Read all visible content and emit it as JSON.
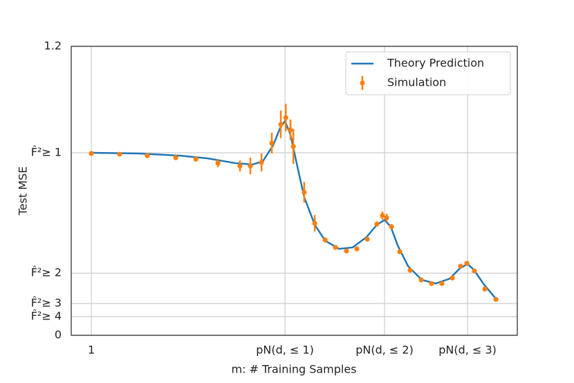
{
  "chart_data": {
    "type": "line",
    "xlabel": "m: # Training Samples",
    "ylabel": "Test MSE",
    "xscale": "log",
    "grid": true,
    "legend": "upper right",
    "xlim": [
      0.62,
      25100
    ],
    "xticks": [
      1,
      {
        "value": 100,
        "label": "pN(d, ≤ 1)"
      },
      {
        "value": 1068,
        "label": "pN(d, ≤ 2)"
      },
      {
        "value": 7690,
        "label": "pN(d, ≤ 3)"
      }
    ],
    "ylim": [
      0,
      1.2
    ],
    "yticks": [
      0,
      {
        "value": 0.0775,
        "label": "F̂²≥ 4"
      },
      {
        "value": 0.132,
        "label": "F̂²≥ 3"
      },
      {
        "value": 0.258,
        "label": "F̂²≥ 2"
      },
      {
        "value": 0.758,
        "label": "F̂²≥ 1"
      },
      1.2
    ],
    "series": [
      {
        "name": "Theory Prediction",
        "color": "#1f77b4",
        "kind": "line",
        "x": [
          1,
          3.06,
          8.2,
          15.8,
          30.6,
          46.1,
          59.1,
          75.6,
          89.1,
          100,
          114,
          134,
          158,
          203,
          260,
          361,
          501,
          696,
          891,
          1068,
          1238,
          1460,
          1868,
          2597,
          3606,
          5012,
          6415,
          7690,
          8913,
          11400,
          15100
        ],
        "values": [
          0.758,
          0.755,
          0.746,
          0.735,
          0.715,
          0.709,
          0.723,
          0.789,
          0.861,
          0.89,
          0.833,
          0.703,
          0.574,
          0.459,
          0.393,
          0.359,
          0.365,
          0.408,
          0.459,
          0.479,
          0.451,
          0.373,
          0.287,
          0.23,
          0.215,
          0.235,
          0.278,
          0.296,
          0.273,
          0.21,
          0.152
        ]
      },
      {
        "name": "Simulation",
        "color": "#ff7f0e",
        "kind": "errorbar",
        "x": [
          1,
          1.96,
          3.79,
          7.44,
          12.0,
          20.3,
          34.3,
          43.9,
          57.2,
          73.1,
          90.6,
          102,
          114,
          122,
          158,
          203,
          260,
          332,
          432,
          553,
          708,
          891,
          1016,
          1122,
          1259,
          1534,
          1963,
          2553,
          3266,
          4178,
          5354,
          6513,
          7568,
          9057,
          11600,
          15100
        ],
        "values": [
          0.755,
          0.752,
          0.746,
          0.738,
          0.732,
          0.715,
          0.703,
          0.703,
          0.718,
          0.798,
          0.876,
          0.904,
          0.853,
          0.784,
          0.594,
          0.465,
          0.396,
          0.365,
          0.35,
          0.359,
          0.399,
          0.462,
          0.497,
          0.488,
          0.451,
          0.347,
          0.27,
          0.23,
          0.215,
          0.215,
          0.238,
          0.287,
          0.299,
          0.267,
          0.192,
          0.149
        ],
        "errors": [
          0,
          0,
          0,
          0.011,
          0.011,
          0.017,
          0.023,
          0.034,
          0.037,
          0.043,
          0.057,
          0.057,
          0.043,
          0.072,
          0.043,
          0.034,
          0.011,
          0.009,
          0.009,
          0.009,
          0.009,
          0.011,
          0.017,
          0.017,
          0.011,
          0.009,
          0.006,
          0.006,
          0.006,
          0.006,
          0.006,
          0.006,
          0.009,
          0.006,
          0.006,
          0.006
        ]
      }
    ]
  }
}
